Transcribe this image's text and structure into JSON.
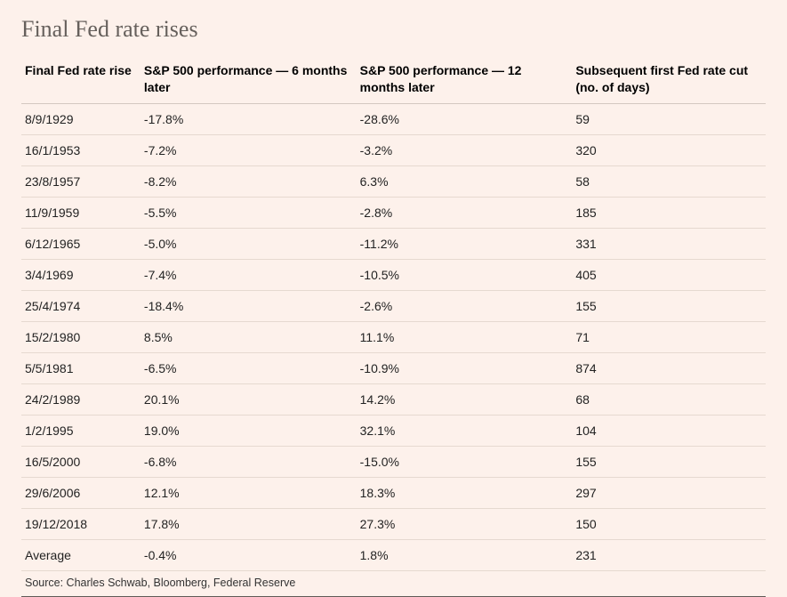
{
  "title": "Final Fed rate rises",
  "table": {
    "type": "table",
    "background_color": "#fdf1eb",
    "text_color": "#222222",
    "title_color": "#66605c",
    "title_fontsize": 26,
    "header_fontsize": 14,
    "cell_fontsize": 14,
    "header_font_weight": 700,
    "row_border_color": "#e6d9d0",
    "header_border_color": "#d4c8c0",
    "bottom_border_color": "#5f5a56",
    "columns": [
      {
        "label": "Final Fed rate rise",
        "width_pct": 16,
        "align": "left"
      },
      {
        "label": "S&P 500 performance — 6 months later",
        "width_pct": 29,
        "align": "left"
      },
      {
        "label": "S&P 500 performance — 12 months later",
        "width_pct": 29,
        "align": "left"
      },
      {
        "label": "Subsequent first Fed rate cut (no. of days)",
        "width_pct": 26,
        "align": "left"
      }
    ],
    "rows": [
      [
        "8/9/1929",
        "-17.8%",
        "-28.6%",
        "59"
      ],
      [
        "16/1/1953",
        "-7.2%",
        "-3.2%",
        "320"
      ],
      [
        "23/8/1957",
        "-8.2%",
        "6.3%",
        "58"
      ],
      [
        "11/9/1959",
        "-5.5%",
        "-2.8%",
        "185"
      ],
      [
        "6/12/1965",
        "-5.0%",
        "-11.2%",
        "331"
      ],
      [
        "3/4/1969",
        "-7.4%",
        "-10.5%",
        "405"
      ],
      [
        "25/4/1974",
        "-18.4%",
        "-2.6%",
        "155"
      ],
      [
        "15/2/1980",
        "8.5%",
        "11.1%",
        "71"
      ],
      [
        "5/5/1981",
        "-6.5%",
        "-10.9%",
        "874"
      ],
      [
        "24/2/1989",
        "20.1%",
        "14.2%",
        "68"
      ],
      [
        "1/2/1995",
        "19.0%",
        "32.1%",
        "104"
      ],
      [
        "16/5/2000",
        "-6.8%",
        "-15.0%",
        "155"
      ],
      [
        "29/6/2006",
        "12.1%",
        "18.3%",
        "297"
      ],
      [
        "19/12/2018",
        "17.8%",
        "27.3%",
        "150"
      ],
      [
        "Average",
        "-0.4%",
        "1.8%",
        "231"
      ]
    ]
  },
  "source": "Source: Charles Schwab, Bloomberg, Federal Reserve"
}
